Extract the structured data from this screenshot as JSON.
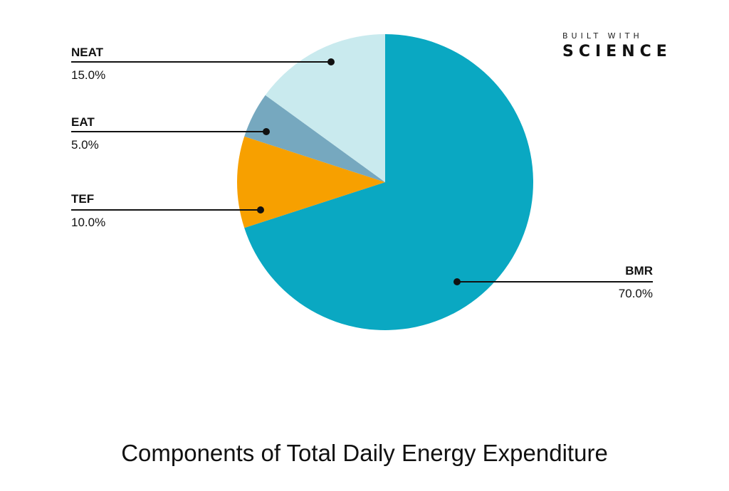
{
  "brand": {
    "line1": "BUILT WITH",
    "line2": "SCIENCE"
  },
  "chart_data": {
    "type": "pie",
    "title": "Components of Total Daily Energy Expenditure",
    "slices": [
      {
        "label": "BMR",
        "value": 70.0,
        "value_label": "70.0%",
        "color": "#0aa8c2"
      },
      {
        "label": "TEF",
        "value": 10.0,
        "value_label": "10.0%",
        "color": "#f7a000"
      },
      {
        "label": "EAT",
        "value": 5.0,
        "value_label": "5.0%",
        "color": "#76a8bf"
      },
      {
        "label": "NEAT",
        "value": 15.0,
        "value_label": "15.0%",
        "color": "#c9eaee"
      }
    ],
    "start_angle": "12 o'clock, clockwise"
  }
}
